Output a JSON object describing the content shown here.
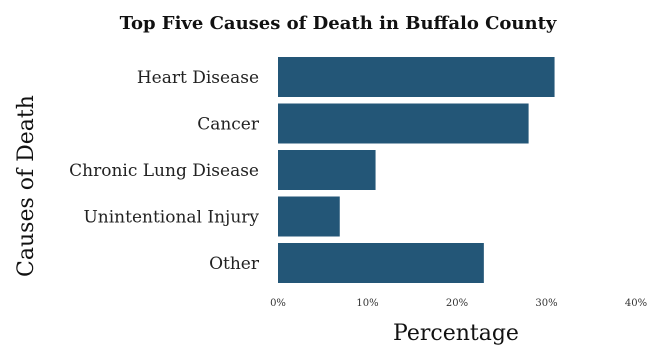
{
  "chart_data": {
    "type": "bar",
    "orientation": "horizontal",
    "title": "Top Five Causes of Death in Buffalo County",
    "xlabel": "Percentage",
    "ylabel": "Causes of Death",
    "categories": [
      "Heart Disease",
      "Cancer",
      "Chronic Lung Disease",
      "Unintentional Injury",
      "Other"
    ],
    "values": [
      30.9,
      28.0,
      10.9,
      6.9,
      23.0
    ],
    "unit": "%",
    "xlim": [
      0,
      40
    ],
    "xticks": [
      0,
      10,
      20,
      30,
      40
    ],
    "xtick_labels": [
      "0%",
      "10%",
      "20%",
      "30%",
      "40%"
    ],
    "grid": false,
    "legend": "none",
    "bar_color": "#235677"
  }
}
